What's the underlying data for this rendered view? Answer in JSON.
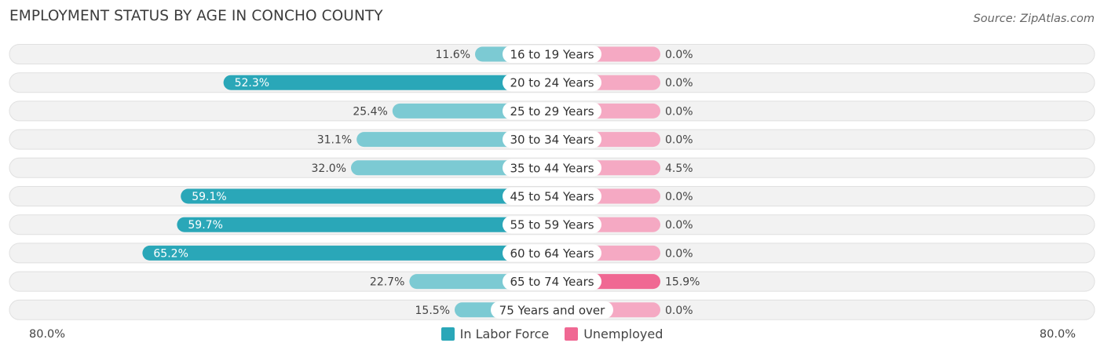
{
  "colors": {
    "labor_dark": "#2aa7b8",
    "labor_light": "#7ccad3",
    "unemp_dark": "#f06893",
    "unemp_light": "#f5a9c3",
    "row_bg": "#f2f2f2",
    "row_border": "#e0e0e0"
  },
  "chart_data": {
    "type": "bar",
    "title": "EMPLOYMENT STATUS BY AGE IN CONCHO COUNTY",
    "source": "Source: ZipAtlas.com",
    "orientation": "diverging-horizontal",
    "categories": [
      "16 to 19 Years",
      "20 to 24 Years",
      "25 to 29 Years",
      "30 to 34 Years",
      "35 to 44 Years",
      "45 to 54 Years",
      "55 to 59 Years",
      "60 to 64 Years",
      "65 to 74 Years",
      "75 Years and over"
    ],
    "series": [
      {
        "name": "In Labor Force",
        "values": [
          11.6,
          52.3,
          25.4,
          31.1,
          32.0,
          59.1,
          59.7,
          65.2,
          22.7,
          15.5
        ]
      },
      {
        "name": "Unemployed",
        "values": [
          0.0,
          0.0,
          0.0,
          0.0,
          4.5,
          0.0,
          0.0,
          0.0,
          15.9,
          0.0
        ]
      }
    ],
    "value_labels": {
      "In Labor Force": [
        "11.6%",
        "52.3%",
        "25.4%",
        "31.1%",
        "32.0%",
        "59.1%",
        "59.7%",
        "65.2%",
        "22.7%",
        "15.5%"
      ],
      "Unemployed": [
        "0.0%",
        "0.0%",
        "0.0%",
        "0.0%",
        "4.5%",
        "0.0%",
        "0.0%",
        "0.0%",
        "15.9%",
        "0.0%"
      ]
    },
    "axis_min_label": "80.0%",
    "axis_max_label": "80.0%",
    "xlim": [
      -80,
      80
    ],
    "legend": [
      "In Labor Force",
      "Unemployed"
    ],
    "legend_position": "bottom-center"
  }
}
